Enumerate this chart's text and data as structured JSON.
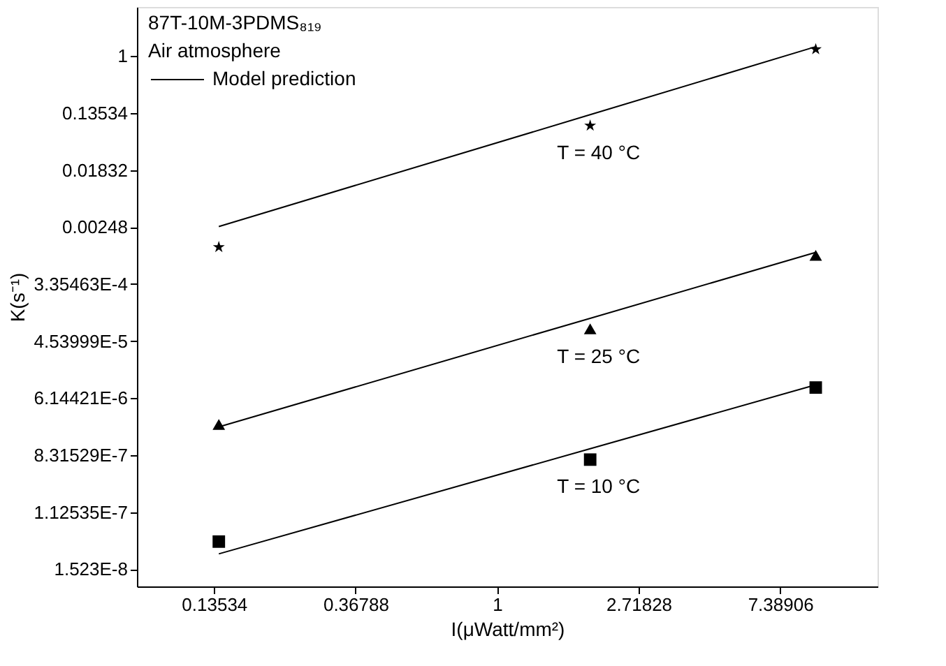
{
  "chart_data": {
    "type": "scatter",
    "title": "87T-10M-3PDMS₈₁₉",
    "subtitle": "Air atmosphere",
    "xlabel": "I(μWatt/mm²)",
    "ylabel": "K(s⁻¹)",
    "log": "xy",
    "grid": false,
    "legend": "top left",
    "x": [
      0.14,
      1.93,
      9.5
    ],
    "xlim": [
      0.0785,
      14.7
    ],
    "xticks": [
      0.13534,
      0.36788,
      1,
      2.71828,
      7.38906
    ],
    "ylim": [
      8.3e-09,
      5.6
    ],
    "yticks": [
      {
        "value": 1.523e-08,
        "label": "1.523E-8"
      },
      {
        "value": 1.12535e-07,
        "label": "1.12535E-7"
      },
      {
        "value": 8.31529e-07,
        "label": "8.31529E-7"
      },
      {
        "value": 6.14421e-06,
        "label": "6.14421E-6"
      },
      {
        "value": 4.53999e-05,
        "label": "4.53999E-5"
      },
      {
        "value": 0.000335463,
        "label": "3.35463E-4"
      },
      0.00248,
      0.01832,
      0.13534,
      1
    ],
    "series": [
      {
        "marker": "star",
        "color": "#000000",
        "values": [
          0.00123,
          0.0872,
          1.27
        ]
      },
      {
        "marker": "triangle",
        "color": "#000000",
        "values": [
          2.44e-06,
          6.98e-05,
          0.00092
        ]
      },
      {
        "marker": "square",
        "color": "#000000",
        "values": [
          4e-08,
          7.1e-07,
          8.9e-06
        ]
      },
      {
        "type": "line",
        "name": "Model prediction",
        "color": "#000000",
        "line_style": "solid",
        "values": [
          0.00253,
          0.128,
          1.39
        ]
      },
      {
        "type": "line",
        "color": "#000000",
        "line_style": "solid",
        "values": [
          2.24e-06,
          0.000101,
          0.00102
        ]
      },
      {
        "type": "line",
        "color": "#000000",
        "line_style": "solid",
        "values": [
          2.6e-08,
          1.04e-06,
          9.8e-06
        ]
      }
    ],
    "annotations": [
      "T = 40 °C",
      "T = 25 °C",
      "T = 10 °C"
    ]
  }
}
